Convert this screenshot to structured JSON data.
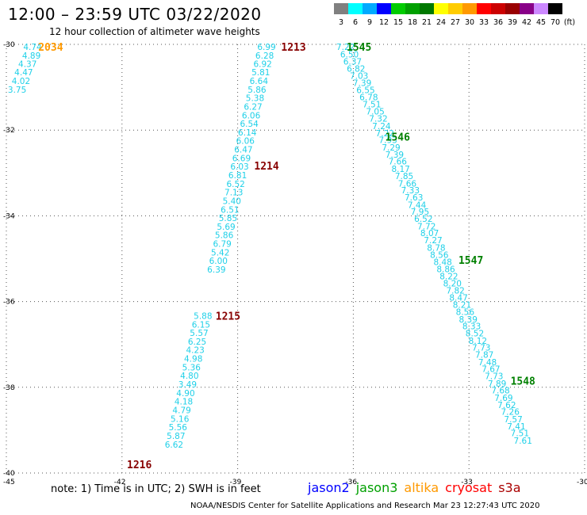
{
  "header": {
    "title": "12:00 – 23:59 UTC 03/22/2020",
    "subtitle": "12 hour collection of altimeter wave heights"
  },
  "legend": {
    "unit": "(ft)",
    "items": [
      {
        "label": "3",
        "color": "#808080"
      },
      {
        "label": "6",
        "color": "#00ffff"
      },
      {
        "label": "9",
        "color": "#00aaff"
      },
      {
        "label": "12",
        "color": "#0000ff"
      },
      {
        "label": "15",
        "color": "#00cc00"
      },
      {
        "label": "18",
        "color": "#00a000"
      },
      {
        "label": "21",
        "color": "#007800"
      },
      {
        "label": "24",
        "color": "#ffff00"
      },
      {
        "label": "27",
        "color": "#ffcc00"
      },
      {
        "label": "30",
        "color": "#ff9900"
      },
      {
        "label": "33",
        "color": "#ff0000"
      },
      {
        "label": "36",
        "color": "#cc0000"
      },
      {
        "label": "39",
        "color": "#990000"
      },
      {
        "label": "42",
        "color": "#880088"
      },
      {
        "label": "45",
        "color": "#cc88ff"
      },
      {
        "label": "70",
        "color": "#000000"
      }
    ]
  },
  "map": {
    "lon_range": [
      -45,
      -30
    ],
    "lat_range": [
      -40,
      -30
    ],
    "lon_ticks": [
      {
        "value": -45,
        "label": "-45"
      },
      {
        "value": -42,
        "label": "-42"
      },
      {
        "value": -39,
        "label": "-39"
      },
      {
        "value": -36,
        "label": "-36"
      },
      {
        "value": -33,
        "label": "-33"
      },
      {
        "value": -30,
        "label": "-30"
      }
    ],
    "lat_ticks": [
      {
        "value": -30,
        "label": "-30"
      },
      {
        "value": -32,
        "label": "-32"
      },
      {
        "value": -34,
        "label": "-34"
      },
      {
        "value": -36,
        "label": "-36"
      },
      {
        "value": -38,
        "label": "-38"
      },
      {
        "value": -40,
        "label": "-40"
      }
    ],
    "pass_labels": [
      {
        "text": "2034",
        "lon": -43.85,
        "lat": -30.06,
        "color": "#ff9900"
      },
      {
        "text": "1213",
        "lon": -37.55,
        "lat": -30.06,
        "color": "#880000"
      },
      {
        "text": "1545",
        "lon": -35.85,
        "lat": -30.06,
        "color": "#008000"
      },
      {
        "text": "1546",
        "lon": -34.85,
        "lat": -32.15,
        "color": "#008000"
      },
      {
        "text": "1214",
        "lon": -38.25,
        "lat": -32.83,
        "color": "#880000"
      },
      {
        "text": "1547",
        "lon": -32.95,
        "lat": -35.03,
        "color": "#008000"
      },
      {
        "text": "1215",
        "lon": -39.25,
        "lat": -36.33,
        "color": "#880000"
      },
      {
        "text": "1548",
        "lon": -31.6,
        "lat": -37.85,
        "color": "#008000"
      },
      {
        "text": "1216",
        "lon": -41.55,
        "lat": -39.8,
        "color": "#880000"
      }
    ],
    "tracks": [
      {
        "id": "2034",
        "obs": [
          {
            "lon": -44.32,
            "lat": -30.06,
            "v": "4.74"
          },
          {
            "lon": -44.35,
            "lat": -30.26,
            "v": "4.89"
          },
          {
            "lon": -44.45,
            "lat": -30.45,
            "v": "4.37"
          },
          {
            "lon": -44.55,
            "lat": -30.65,
            "v": "4.47"
          },
          {
            "lon": -44.62,
            "lat": -30.85,
            "v": "4.02"
          },
          {
            "lon": -44.72,
            "lat": -31.05,
            "v": "3.75"
          }
        ]
      },
      {
        "id": "1213",
        "obs": [
          {
            "lon": -38.25,
            "lat": -30.06,
            "v": "6.99"
          },
          {
            "lon": -38.3,
            "lat": -30.26,
            "v": "6.28"
          },
          {
            "lon": -38.35,
            "lat": -30.45,
            "v": "6.92"
          },
          {
            "lon": -38.4,
            "lat": -30.65,
            "v": "5.81"
          },
          {
            "lon": -38.45,
            "lat": -30.85,
            "v": "6.64"
          },
          {
            "lon": -38.5,
            "lat": -31.05,
            "v": "5.86"
          },
          {
            "lon": -38.55,
            "lat": -31.25,
            "v": "5.38"
          },
          {
            "lon": -38.6,
            "lat": -31.45,
            "v": "6.27"
          },
          {
            "lon": -38.65,
            "lat": -31.65,
            "v": "6.06"
          },
          {
            "lon": -38.7,
            "lat": -31.85,
            "v": "6.54"
          },
          {
            "lon": -38.75,
            "lat": -32.05,
            "v": "6.14"
          },
          {
            "lon": -38.8,
            "lat": -32.25,
            "v": "6.06"
          },
          {
            "lon": -38.85,
            "lat": -32.45,
            "v": "6.47"
          },
          {
            "lon": -38.9,
            "lat": -32.65,
            "v": "6.69"
          },
          {
            "lon": -38.95,
            "lat": -32.85,
            "v": "6.03"
          },
          {
            "lon": -39.0,
            "lat": -33.05,
            "v": "6.81"
          },
          {
            "lon": -39.05,
            "lat": -33.25,
            "v": "6.52"
          },
          {
            "lon": -39.1,
            "lat": -33.45,
            "v": "7.13"
          },
          {
            "lon": -39.15,
            "lat": -33.65,
            "v": "5.40"
          },
          {
            "lon": -39.2,
            "lat": -33.85,
            "v": "6.51"
          },
          {
            "lon": -39.25,
            "lat": -34.05,
            "v": "5.85"
          },
          {
            "lon": -39.3,
            "lat": -34.25,
            "v": "5.69"
          },
          {
            "lon": -39.35,
            "lat": -34.45,
            "v": "5.86"
          },
          {
            "lon": -39.4,
            "lat": -34.65,
            "v": "6.79"
          },
          {
            "lon": -39.45,
            "lat": -34.85,
            "v": "5.42"
          },
          {
            "lon": -39.5,
            "lat": -35.05,
            "v": "6.00"
          },
          {
            "lon": -39.55,
            "lat": -35.25,
            "v": "6.39"
          }
        ]
      },
      {
        "id": "1215",
        "obs": [
          {
            "lon": -39.9,
            "lat": -36.33,
            "v": "5.88"
          },
          {
            "lon": -39.95,
            "lat": -36.53,
            "v": "6.15"
          },
          {
            "lon": -40.0,
            "lat": -36.73,
            "v": "5.57"
          },
          {
            "lon": -40.05,
            "lat": -36.93,
            "v": "6.25"
          },
          {
            "lon": -40.1,
            "lat": -37.13,
            "v": "4.23"
          },
          {
            "lon": -40.15,
            "lat": -37.33,
            "v": "4.98"
          },
          {
            "lon": -40.2,
            "lat": -37.53,
            "v": "5.36"
          },
          {
            "lon": -40.25,
            "lat": -37.73,
            "v": "4.80"
          },
          {
            "lon": -40.3,
            "lat": -37.93,
            "v": "3.49"
          },
          {
            "lon": -40.35,
            "lat": -38.13,
            "v": "4.90"
          },
          {
            "lon": -40.4,
            "lat": -38.33,
            "v": "4.18"
          },
          {
            "lon": -40.45,
            "lat": -38.53,
            "v": "4.79"
          },
          {
            "lon": -40.5,
            "lat": -38.73,
            "v": "5.16"
          },
          {
            "lon": -40.55,
            "lat": -38.93,
            "v": "5.56"
          },
          {
            "lon": -40.6,
            "lat": -39.13,
            "v": "5.87"
          },
          {
            "lon": -40.65,
            "lat": -39.33,
            "v": "6.62"
          }
        ]
      },
      {
        "id": "1545",
        "obs": [
          {
            "lon": -36.2,
            "lat": -30.06,
            "v": "7.22"
          },
          {
            "lon": -36.1,
            "lat": -30.23,
            "v": "6.50"
          },
          {
            "lon": -36.02,
            "lat": -30.4,
            "v": "6.37"
          },
          {
            "lon": -35.93,
            "lat": -30.56,
            "v": "6.82"
          },
          {
            "lon": -35.85,
            "lat": -30.73,
            "v": "7.03"
          },
          {
            "lon": -35.77,
            "lat": -30.9,
            "v": "7.39"
          },
          {
            "lon": -35.68,
            "lat": -31.06,
            "v": "6.55"
          },
          {
            "lon": -35.6,
            "lat": -31.23,
            "v": "6.78"
          },
          {
            "lon": -35.52,
            "lat": -31.4,
            "v": "7.51"
          },
          {
            "lon": -35.43,
            "lat": -31.56,
            "v": "7.05"
          },
          {
            "lon": -35.35,
            "lat": -31.73,
            "v": "7.32"
          },
          {
            "lon": -35.27,
            "lat": -31.9,
            "v": "7.24"
          },
          {
            "lon": -35.18,
            "lat": -32.07,
            "v": "7.22"
          },
          {
            "lon": -35.1,
            "lat": -32.23,
            "v": "7.93"
          },
          {
            "lon": -35.02,
            "lat": -32.4,
            "v": "7.29"
          },
          {
            "lon": -34.93,
            "lat": -32.57,
            "v": "7.39"
          },
          {
            "lon": -34.85,
            "lat": -32.73,
            "v": "7.66"
          },
          {
            "lon": -34.77,
            "lat": -32.9,
            "v": "8.17"
          },
          {
            "lon": -34.68,
            "lat": -33.07,
            "v": "7.85"
          },
          {
            "lon": -34.6,
            "lat": -33.24,
            "v": "7.66"
          },
          {
            "lon": -34.52,
            "lat": -33.4,
            "v": "7.33"
          },
          {
            "lon": -34.43,
            "lat": -33.57,
            "v": "7.63"
          },
          {
            "lon": -34.35,
            "lat": -33.74,
            "v": "7.44"
          },
          {
            "lon": -34.27,
            "lat": -33.9,
            "v": "7.95"
          },
          {
            "lon": -34.18,
            "lat": -34.07,
            "v": "6.52"
          },
          {
            "lon": -34.1,
            "lat": -34.24,
            "v": "7.72"
          },
          {
            "lon": -34.02,
            "lat": -34.4,
            "v": "8.07"
          },
          {
            "lon": -33.93,
            "lat": -34.57,
            "v": "7.27"
          },
          {
            "lon": -33.85,
            "lat": -34.74,
            "v": "8.78"
          },
          {
            "lon": -33.77,
            "lat": -34.91,
            "v": "8.56"
          },
          {
            "lon": -33.68,
            "lat": -35.07,
            "v": "8.48"
          },
          {
            "lon": -33.6,
            "lat": -35.24,
            "v": "8.86"
          },
          {
            "lon": -33.52,
            "lat": -35.41,
            "v": "8.22"
          },
          {
            "lon": -33.43,
            "lat": -35.57,
            "v": "8.20"
          },
          {
            "lon": -33.35,
            "lat": -35.74,
            "v": "7.82"
          },
          {
            "lon": -33.27,
            "lat": -35.91,
            "v": "8.47"
          },
          {
            "lon": -33.18,
            "lat": -36.07,
            "v": "8.21"
          },
          {
            "lon": -33.1,
            "lat": -36.24,
            "v": "8.56"
          },
          {
            "lon": -33.02,
            "lat": -36.41,
            "v": "8.39"
          },
          {
            "lon": -32.93,
            "lat": -36.57,
            "v": "8.33"
          },
          {
            "lon": -32.85,
            "lat": -36.74,
            "v": "8.52"
          },
          {
            "lon": -32.77,
            "lat": -36.91,
            "v": "8.12"
          },
          {
            "lon": -32.68,
            "lat": -37.07,
            "v": "7.73"
          },
          {
            "lon": -32.6,
            "lat": -37.24,
            "v": "7.87"
          },
          {
            "lon": -32.52,
            "lat": -37.41,
            "v": "7.48"
          },
          {
            "lon": -32.43,
            "lat": -37.57,
            "v": "7.67"
          },
          {
            "lon": -32.35,
            "lat": -37.74,
            "v": "7.73"
          },
          {
            "lon": -32.27,
            "lat": -37.91,
            "v": "7.89"
          },
          {
            "lon": -32.18,
            "lat": -38.07,
            "v": "7.68"
          },
          {
            "lon": -32.1,
            "lat": -38.24,
            "v": "7.69"
          },
          {
            "lon": -32.02,
            "lat": -38.41,
            "v": "7.62"
          },
          {
            "lon": -31.93,
            "lat": -38.57,
            "v": "7.26"
          },
          {
            "lon": -31.85,
            "lat": -38.74,
            "v": "7.57"
          },
          {
            "lon": -31.77,
            "lat": -38.91,
            "v": "7.41"
          },
          {
            "lon": -31.68,
            "lat": -39.07,
            "v": "7.51"
          },
          {
            "lon": -31.6,
            "lat": -39.24,
            "v": "7.61"
          }
        ]
      }
    ]
  },
  "footer": {
    "note": "note:  1) Time is in UTC; 2) SWH is in feet",
    "satellites": [
      {
        "name": "jason2",
        "color": "#0000ff"
      },
      {
        "name": "jason3",
        "color": "#00a000"
      },
      {
        "name": "altika",
        "color": "#ff9900"
      },
      {
        "name": "cryosat",
        "color": "#ff0000"
      },
      {
        "name": "s3a",
        "color": "#aa0000"
      }
    ],
    "credit": "NOAA/NESDIS Center for Satellite Applications and Research    Mar 23 12:27:43 UTC 2020"
  }
}
